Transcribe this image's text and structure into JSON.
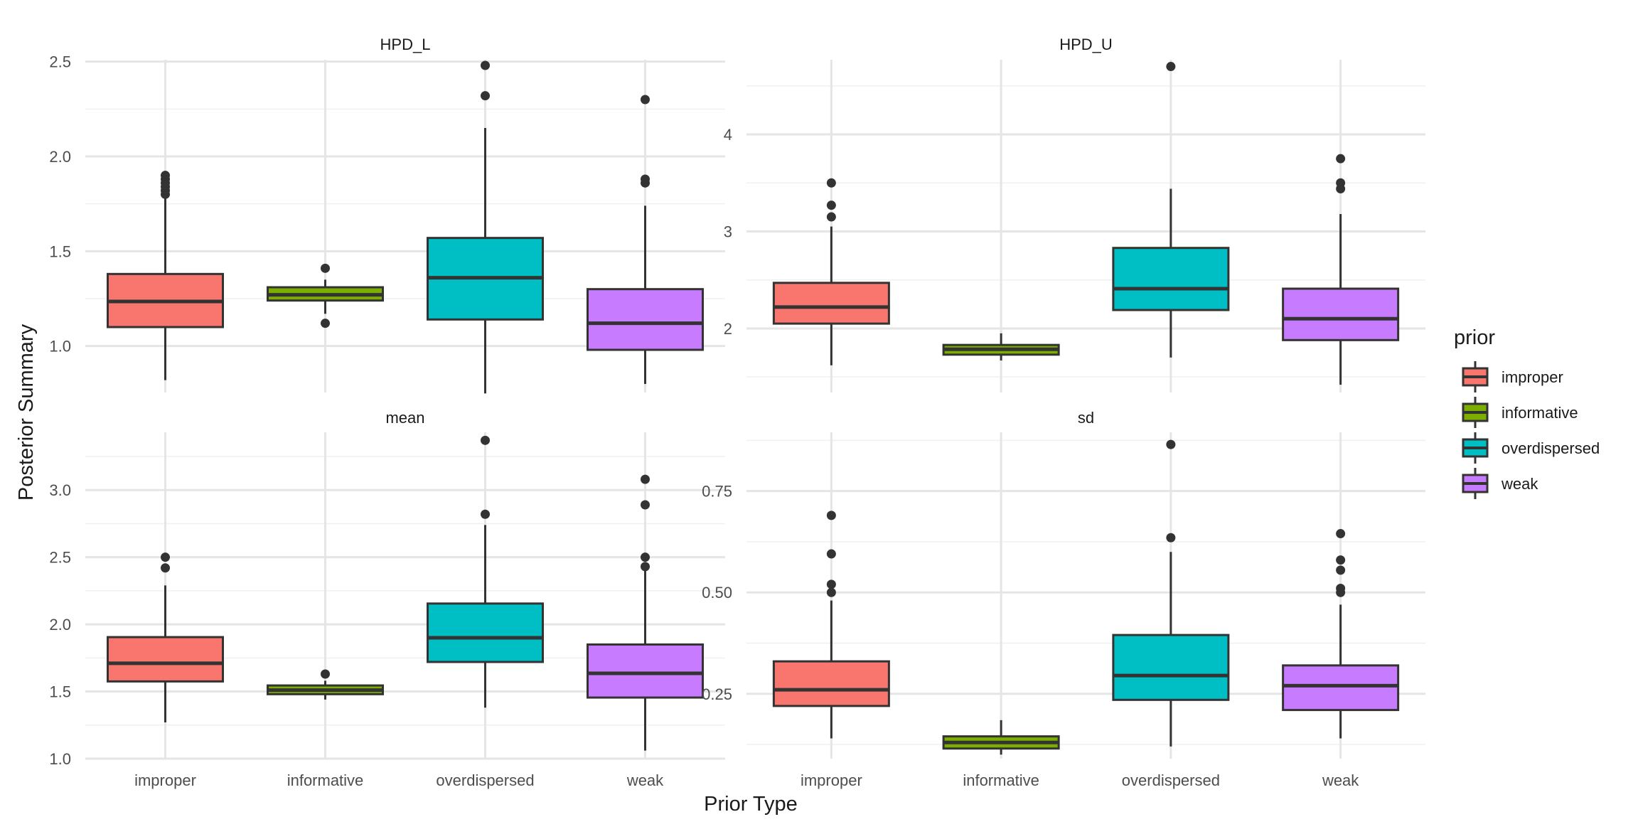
{
  "chart_data": {
    "type": "boxplot",
    "xlabel": "Prior Type",
    "ylabel": "Posterior Summary",
    "categories": [
      "improper",
      "informative",
      "overdispersed",
      "weak"
    ],
    "colors": {
      "improper": "#F8766D",
      "informative": "#7CAE00",
      "overdispersed": "#00BFC4",
      "weak": "#C77CFF"
    },
    "legend": {
      "title": "prior",
      "position": "right",
      "entries": [
        "improper",
        "informative",
        "overdispersed",
        "weak"
      ]
    },
    "panels": [
      {
        "title": "HPD_L",
        "ylim": [
          0.755,
          2.51
        ],
        "ticks": [
          1.0,
          1.5,
          2.0,
          2.5
        ],
        "tick_labels": [
          "1.0",
          "1.5",
          "2.0",
          "2.5"
        ],
        "boxes": [
          {
            "category": "improper",
            "q1": 1.1,
            "median": 1.235,
            "q3": 1.38,
            "whisker_low": 0.82,
            "whisker_high": 1.79,
            "outliers": [
              1.8,
              1.82,
              1.84,
              1.86,
              1.88,
              1.9
            ]
          },
          {
            "category": "informative",
            "q1": 1.24,
            "median": 1.27,
            "q3": 1.31,
            "whisker_low": 1.17,
            "whisker_high": 1.35,
            "outliers": [
              1.12,
              1.41
            ]
          },
          {
            "category": "overdispersed",
            "q1": 1.14,
            "median": 1.36,
            "q3": 1.57,
            "whisker_low": 0.75,
            "whisker_high": 2.15,
            "outliers": [
              2.32,
              2.48
            ]
          },
          {
            "category": "weak",
            "q1": 0.98,
            "median": 1.12,
            "q3": 1.3,
            "whisker_low": 0.8,
            "whisker_high": 1.74,
            "outliers": [
              1.86,
              1.88,
              2.3
            ]
          }
        ]
      },
      {
        "title": "HPD_U",
        "ylim": [
          1.34,
          4.77
        ],
        "ticks": [
          2,
          3,
          4
        ],
        "tick_labels": [
          "2",
          "3",
          "4"
        ],
        "boxes": [
          {
            "category": "improper",
            "q1": 2.05,
            "median": 2.22,
            "q3": 2.47,
            "whisker_low": 1.62,
            "whisker_high": 3.05,
            "outliers": [
              3.15,
              3.27,
              3.5
            ]
          },
          {
            "category": "informative",
            "q1": 1.73,
            "median": 1.785,
            "q3": 1.83,
            "whisker_low": 1.67,
            "whisker_high": 1.95,
            "outliers": []
          },
          {
            "category": "overdispersed",
            "q1": 2.19,
            "median": 2.41,
            "q3": 2.83,
            "whisker_low": 1.7,
            "whisker_high": 3.44,
            "outliers": [
              4.7
            ]
          },
          {
            "category": "weak",
            "q1": 1.88,
            "median": 2.1,
            "q3": 2.41,
            "whisker_low": 1.42,
            "whisker_high": 3.18,
            "outliers": [
              3.44,
              3.5,
              3.75
            ]
          }
        ]
      },
      {
        "title": "mean",
        "ylim": [
          1.0,
          3.43
        ],
        "ticks": [
          1.0,
          1.5,
          2.0,
          2.5,
          3.0
        ],
        "tick_labels": [
          "1.0",
          "1.5",
          "2.0",
          "2.5",
          "3.0"
        ],
        "boxes": [
          {
            "category": "improper",
            "q1": 1.575,
            "median": 1.71,
            "q3": 1.905,
            "whisker_low": 1.27,
            "whisker_high": 2.29,
            "outliers": [
              2.42,
              2.5
            ]
          },
          {
            "category": "informative",
            "q1": 1.48,
            "median": 1.51,
            "q3": 1.545,
            "whisker_low": 1.44,
            "whisker_high": 1.58,
            "outliers": [
              1.63
            ]
          },
          {
            "category": "overdispersed",
            "q1": 1.72,
            "median": 1.9,
            "q3": 2.155,
            "whisker_low": 1.38,
            "whisker_high": 2.74,
            "outliers": [
              2.82,
              3.37
            ]
          },
          {
            "category": "weak",
            "q1": 1.455,
            "median": 1.635,
            "q3": 1.85,
            "whisker_low": 1.06,
            "whisker_high": 2.41,
            "outliers": [
              2.43,
              2.5,
              2.89,
              3.08
            ]
          }
        ]
      },
      {
        "title": "sd",
        "ylim": [
          0.09,
          0.895
        ],
        "ticks": [
          0.25,
          0.5,
          0.75
        ],
        "tick_labels": [
          "0.25",
          "0.50",
          "0.75"
        ],
        "boxes": [
          {
            "category": "improper",
            "q1": 0.22,
            "median": 0.26,
            "q3": 0.33,
            "whisker_low": 0.14,
            "whisker_high": 0.48,
            "outliers": [
              0.5,
              0.52,
              0.595,
              0.69
            ]
          },
          {
            "category": "informative",
            "q1": 0.115,
            "median": 0.13,
            "q3": 0.145,
            "whisker_low": 0.1,
            "whisker_high": 0.185,
            "outliers": []
          },
          {
            "category": "overdispersed",
            "q1": 0.235,
            "median": 0.295,
            "q3": 0.395,
            "whisker_low": 0.12,
            "whisker_high": 0.6,
            "outliers": [
              0.635,
              0.865
            ]
          },
          {
            "category": "weak",
            "q1": 0.21,
            "median": 0.27,
            "q3": 0.32,
            "whisker_low": 0.14,
            "whisker_high": 0.47,
            "outliers": [
              0.5,
              0.51,
              0.555,
              0.58,
              0.645
            ]
          }
        ]
      }
    ]
  }
}
